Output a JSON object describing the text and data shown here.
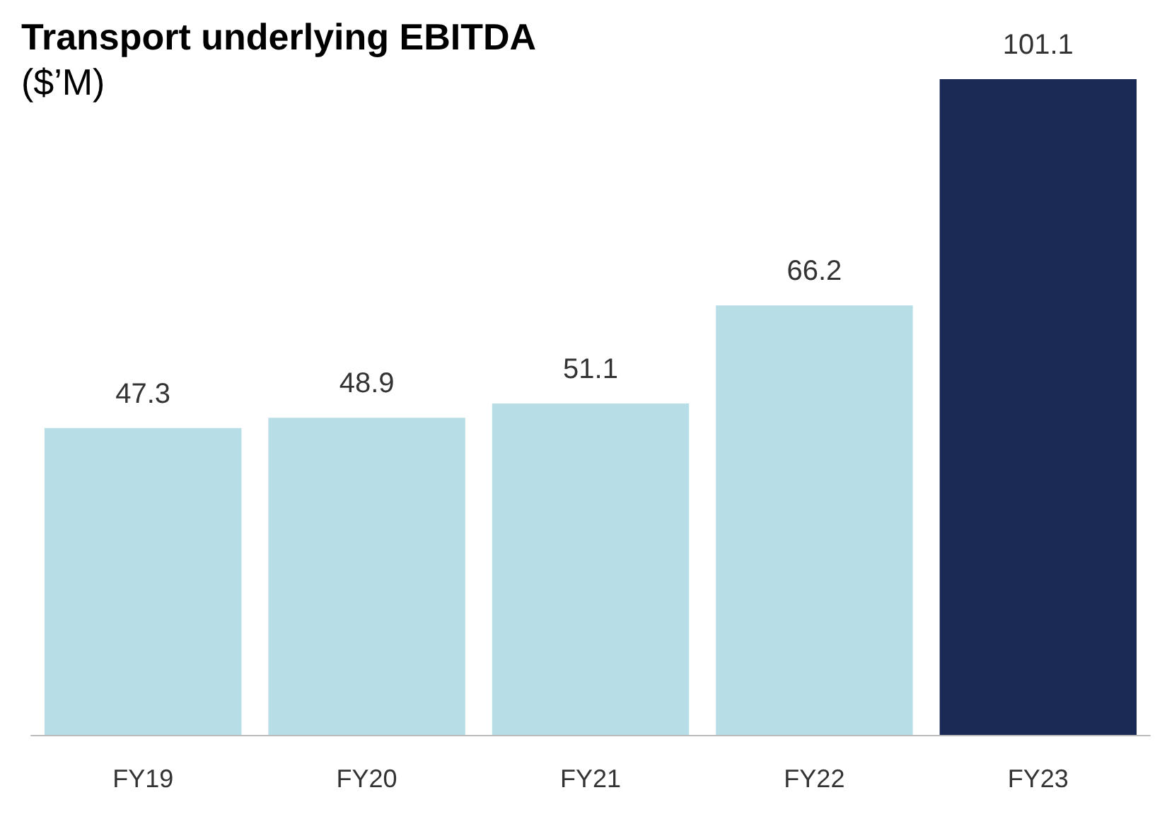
{
  "chart_data": {
    "type": "bar",
    "title": "Transport underlying EBITDA",
    "subtitle": "($’M)",
    "categories": [
      "FY19",
      "FY20",
      "FY21",
      "FY22",
      "FY23"
    ],
    "values": [
      47.3,
      48.9,
      51.1,
      66.2,
      101.1
    ],
    "colors": [
      "#b7dde6",
      "#b7dde6",
      "#b7dde6",
      "#b7dde6",
      "#1b2a55"
    ],
    "data_labels": true
  }
}
